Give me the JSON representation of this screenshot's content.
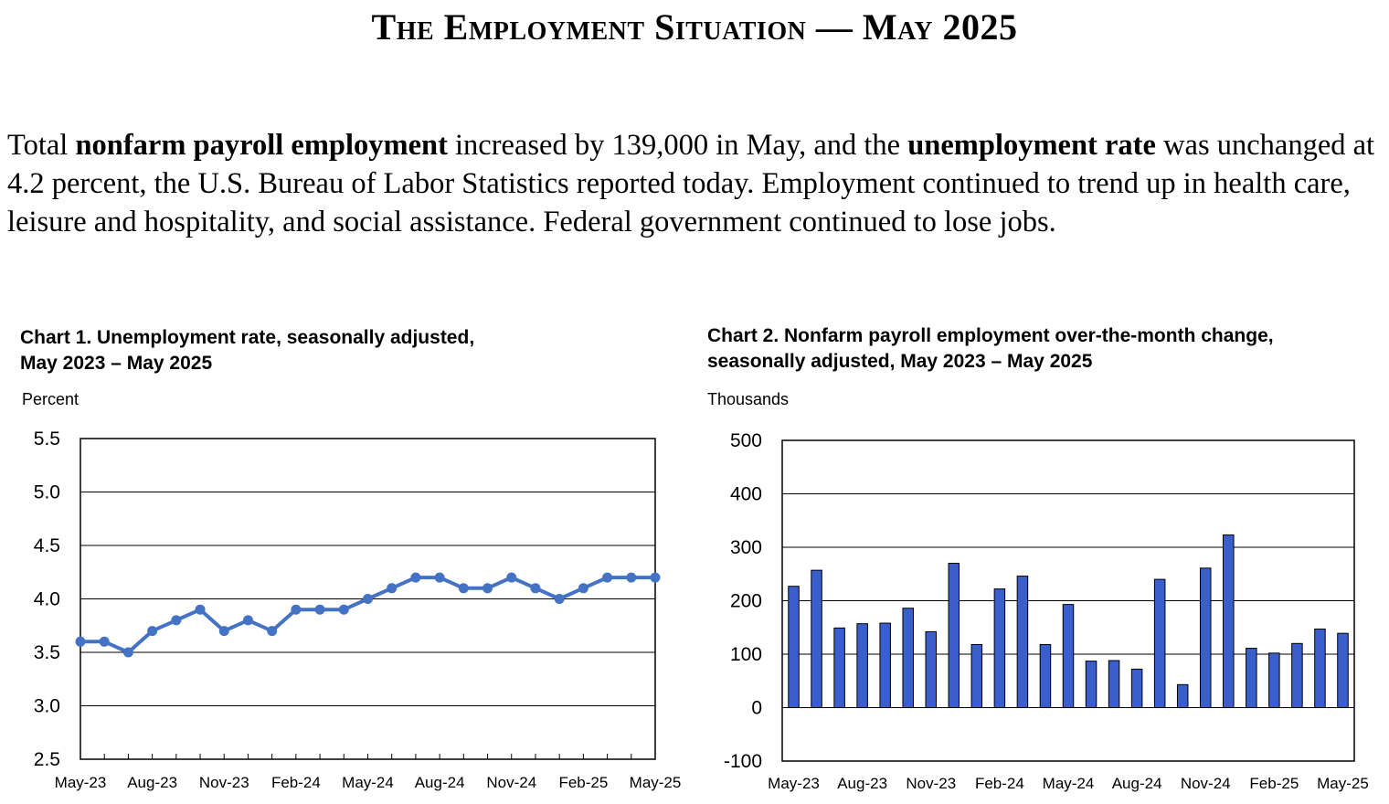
{
  "headline": "The Employment Situation — May 2025",
  "summary": {
    "p1": "Total ",
    "b1": "nonfarm payroll employment",
    "p2": " increased by 139,000 in May, and the ",
    "b2": "unemployment rate",
    "p3": " was unchanged at 4.2 percent, the U.S. Bureau of Labor Statistics reported today. Employment continued to trend up in health care, leisure and hospitality, and social assistance. Federal government continued to lose jobs."
  },
  "colors": {
    "series": "#4472c4",
    "bars": "#3a5fcd",
    "bar_outline": "#000000",
    "grid": "#000000"
  },
  "chart_data": [
    {
      "type": "line",
      "title_line1": "Chart 1. Unemployment rate, seasonally adjusted,",
      "title_line2": "May 2023 – May 2025",
      "ylabel": "Percent",
      "ylim": [
        2.5,
        5.5
      ],
      "yticks": [
        "5.5",
        "5.0",
        "4.5",
        "4.0",
        "3.5",
        "3.0",
        "2.5"
      ],
      "ytick_values": [
        5.5,
        5.0,
        4.5,
        4.0,
        3.5,
        3.0,
        2.5
      ],
      "xtick_labels": [
        "May-23",
        "Aug-23",
        "Nov-23",
        "Feb-24",
        "May-24",
        "Aug-24",
        "Nov-24",
        "Feb-25",
        "May-25"
      ],
      "grid": "horizontal",
      "values": [
        3.6,
        3.6,
        3.5,
        3.7,
        3.8,
        3.9,
        3.7,
        3.8,
        3.7,
        3.9,
        3.9,
        3.9,
        4.0,
        4.1,
        4.2,
        4.2,
        4.1,
        4.1,
        4.2,
        4.1,
        4.0,
        4.1,
        4.2,
        4.2,
        4.2
      ]
    },
    {
      "type": "bar",
      "title_line1": "Chart 2. Nonfarm payroll employment over-the-month change,",
      "title_line2": "seasonally adjusted, May 2023 – May 2025",
      "ylabel": "Thousands",
      "ylim": [
        -100,
        500
      ],
      "yticks": [
        "500",
        "400",
        "300",
        "200",
        "100",
        "0",
        "-100"
      ],
      "ytick_values": [
        500,
        400,
        300,
        200,
        100,
        0,
        -100
      ],
      "xtick_labels": [
        "May-23",
        "Aug-23",
        "Nov-23",
        "Feb-24",
        "May-24",
        "Aug-24",
        "Nov-24",
        "Feb-25",
        "May-25"
      ],
      "grid": "horizontal",
      "values": [
        227,
        257,
        149,
        157,
        158,
        186,
        142,
        270,
        118,
        222,
        246,
        118,
        193,
        87,
        88,
        72,
        240,
        43,
        261,
        323,
        111,
        102,
        120,
        147,
        139
      ]
    }
  ]
}
